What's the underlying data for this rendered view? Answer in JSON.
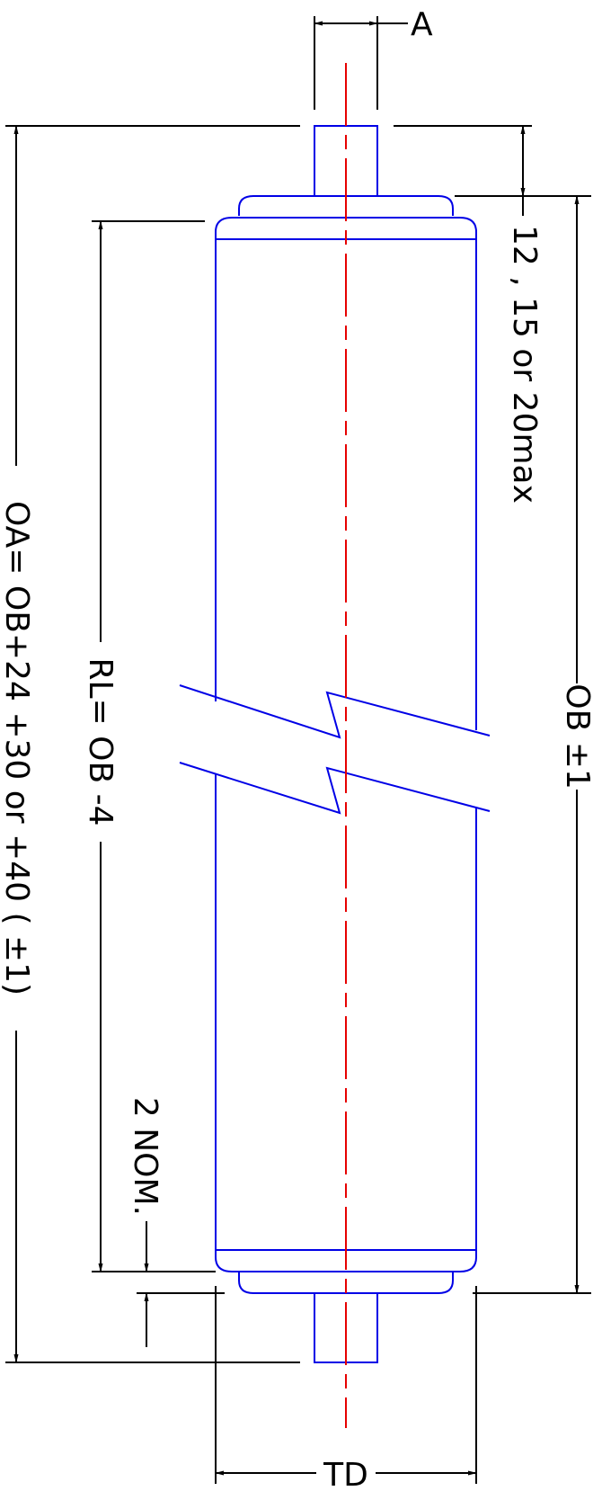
{
  "labels": {
    "shaft_diameter": "A",
    "shaft_projection": "12 , 15 or 20max",
    "bracket_length": "OB ±1",
    "overall_length": "OA= OB+24 +30 or +40 ( ±1)",
    "roller_length": "RL= OB -4",
    "end_cap": "2 NOM.",
    "tube_diameter": "TD"
  },
  "colors": {
    "outline": "#0000e6",
    "centerline": "#e60000",
    "dimension": "#000000"
  }
}
